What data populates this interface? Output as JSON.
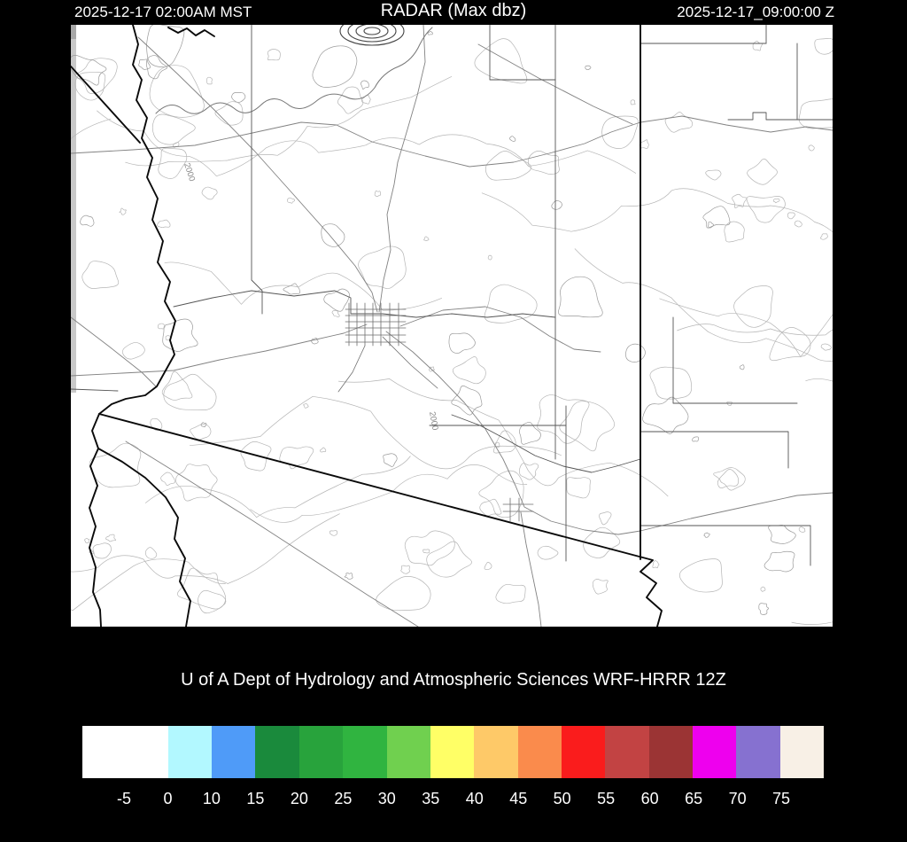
{
  "header": {
    "valid_time_local": "2025-12-17 02:00AM MST",
    "product_title": "RADAR (Max dbz)",
    "run_time_utc": "2025-12-17_09:00:00 Z"
  },
  "footer": {
    "title": "U of A Dept of Hydrology and Atmospheric Sciences WRF-HRRR 12Z"
  },
  "map": {
    "contour_labels": [
      "2000",
      "2000"
    ]
  },
  "colorbar": {
    "unit": "dbz",
    "tick_labels": [
      "-5",
      "0",
      "10",
      "15",
      "20",
      "25",
      "30",
      "35",
      "40",
      "45",
      "50",
      "55",
      "60",
      "65",
      "70",
      "75"
    ],
    "segments": [
      {
        "range": "-10 to 0",
        "color": "#ffffff",
        "wide": true
      },
      {
        "range": "0 to 10",
        "color": "#b2f8ff",
        "wide": false
      },
      {
        "range": "10 to 15",
        "color": "#4f9bf8",
        "wide": false
      },
      {
        "range": "15 to 20",
        "color": "#1a8a3c",
        "wide": false
      },
      {
        "range": "20 to 25",
        "color": "#28a33c",
        "wide": false
      },
      {
        "range": "25 to 30",
        "color": "#30b440",
        "wide": false
      },
      {
        "range": "30 to 35",
        "color": "#70d04f",
        "wide": false
      },
      {
        "range": "35 to 40",
        "color": "#ffff66",
        "wide": false
      },
      {
        "range": "40 to 45",
        "color": "#fec968",
        "wide": false
      },
      {
        "range": "45 to 50",
        "color": "#fa8b4c",
        "wide": false
      },
      {
        "range": "50 to 55",
        "color": "#fa1c1c",
        "wide": false
      },
      {
        "range": "55 to 60",
        "color": "#c24343",
        "wide": false
      },
      {
        "range": "60 to 65",
        "color": "#9b3434",
        "wide": false
      },
      {
        "range": "65 to 70",
        "color": "#ee00ee",
        "wide": false
      },
      {
        "range": "70 to 75",
        "color": "#8671d0",
        "wide": false
      },
      {
        "range": "75 plus",
        "color": "#f8f0e6",
        "wide": false
      }
    ]
  }
}
